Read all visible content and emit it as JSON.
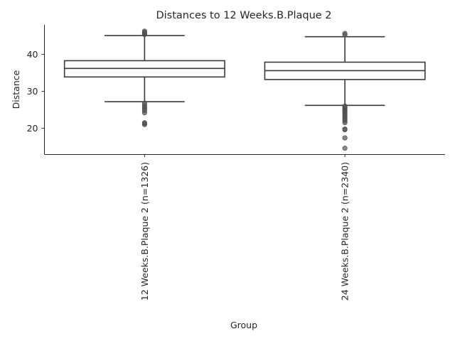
{
  "chart_data": {
    "type": "box",
    "title": "Distances to 12 Weeks.B.Plaque 2",
    "xlabel": "Group",
    "ylabel": "Distance",
    "ylim": [
      13,
      48
    ],
    "yticks": [
      20,
      30,
      40
    ],
    "grid": false,
    "categories": [
      "12 Weeks.B.Plaque 2 (n=1326)",
      "24 Weeks.B.Plaque 2 (n=2340)"
    ],
    "boxes": [
      {
        "name": "12 Weeks.B.Plaque 2 (n=1326)",
        "whisker_low": 27.2,
        "q1": 33.9,
        "median": 36.2,
        "q3": 38.3,
        "whisker_high": 45.1,
        "fliers": [
          21.0,
          21.3,
          21.5,
          24.2,
          24.8,
          25.3,
          25.8,
          26.3,
          26.8,
          45.4,
          45.7,
          46.0,
          46.3
        ]
      },
      {
        "name": "24 Weeks.B.Plaque 2 (n=2340)",
        "whisker_low": 26.2,
        "q1": 33.2,
        "median": 35.6,
        "q3": 37.9,
        "whisker_high": 44.8,
        "fliers": [
          14.6,
          17.4,
          19.6,
          19.8,
          21.5,
          22.0,
          22.5,
          23.0,
          23.4,
          23.8,
          24.2,
          24.6,
          25.0,
          25.4,
          25.8,
          26.0,
          45.3,
          45.7
        ]
      }
    ]
  }
}
